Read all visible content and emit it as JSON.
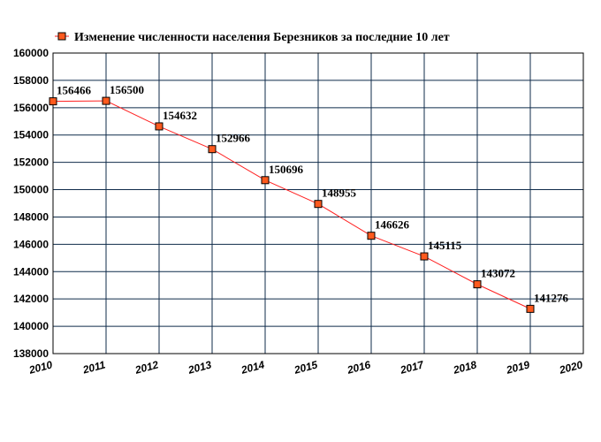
{
  "chart_data": {
    "type": "line",
    "title": "",
    "xlabel": "",
    "ylabel": "",
    "x": [
      2010,
      2011,
      2012,
      2013,
      2014,
      2015,
      2016,
      2017,
      2018,
      2019
    ],
    "series": [
      {
        "name": "Изменение численности населения Березников за последние 10 лет",
        "values": [
          156466,
          156500,
          154632,
          152966,
          150696,
          148955,
          146626,
          145115,
          143072,
          141276
        ],
        "color": "#ff2020",
        "marker_color": "#ff5a1e"
      }
    ],
    "data_labels": [
      "156466",
      "156500",
      "154632",
      "152966",
      "150696",
      "148955",
      "146626",
      "145115",
      "143072",
      "141276"
    ],
    "xlim": [
      2010,
      2020
    ],
    "ylim": [
      138000,
      160000
    ],
    "x_ticks": [
      "2010",
      "2011",
      "2012",
      "2013",
      "2014",
      "2015",
      "2016",
      "2017",
      "2018",
      "2019",
      "2020"
    ],
    "y_ticks": [
      "138000",
      "140000",
      "142000",
      "144000",
      "146000",
      "148000",
      "150000",
      "152000",
      "154000",
      "156000",
      "158000",
      "160000"
    ],
    "grid": true,
    "grid_color": "#0f2b4a",
    "legend_position": "top"
  }
}
